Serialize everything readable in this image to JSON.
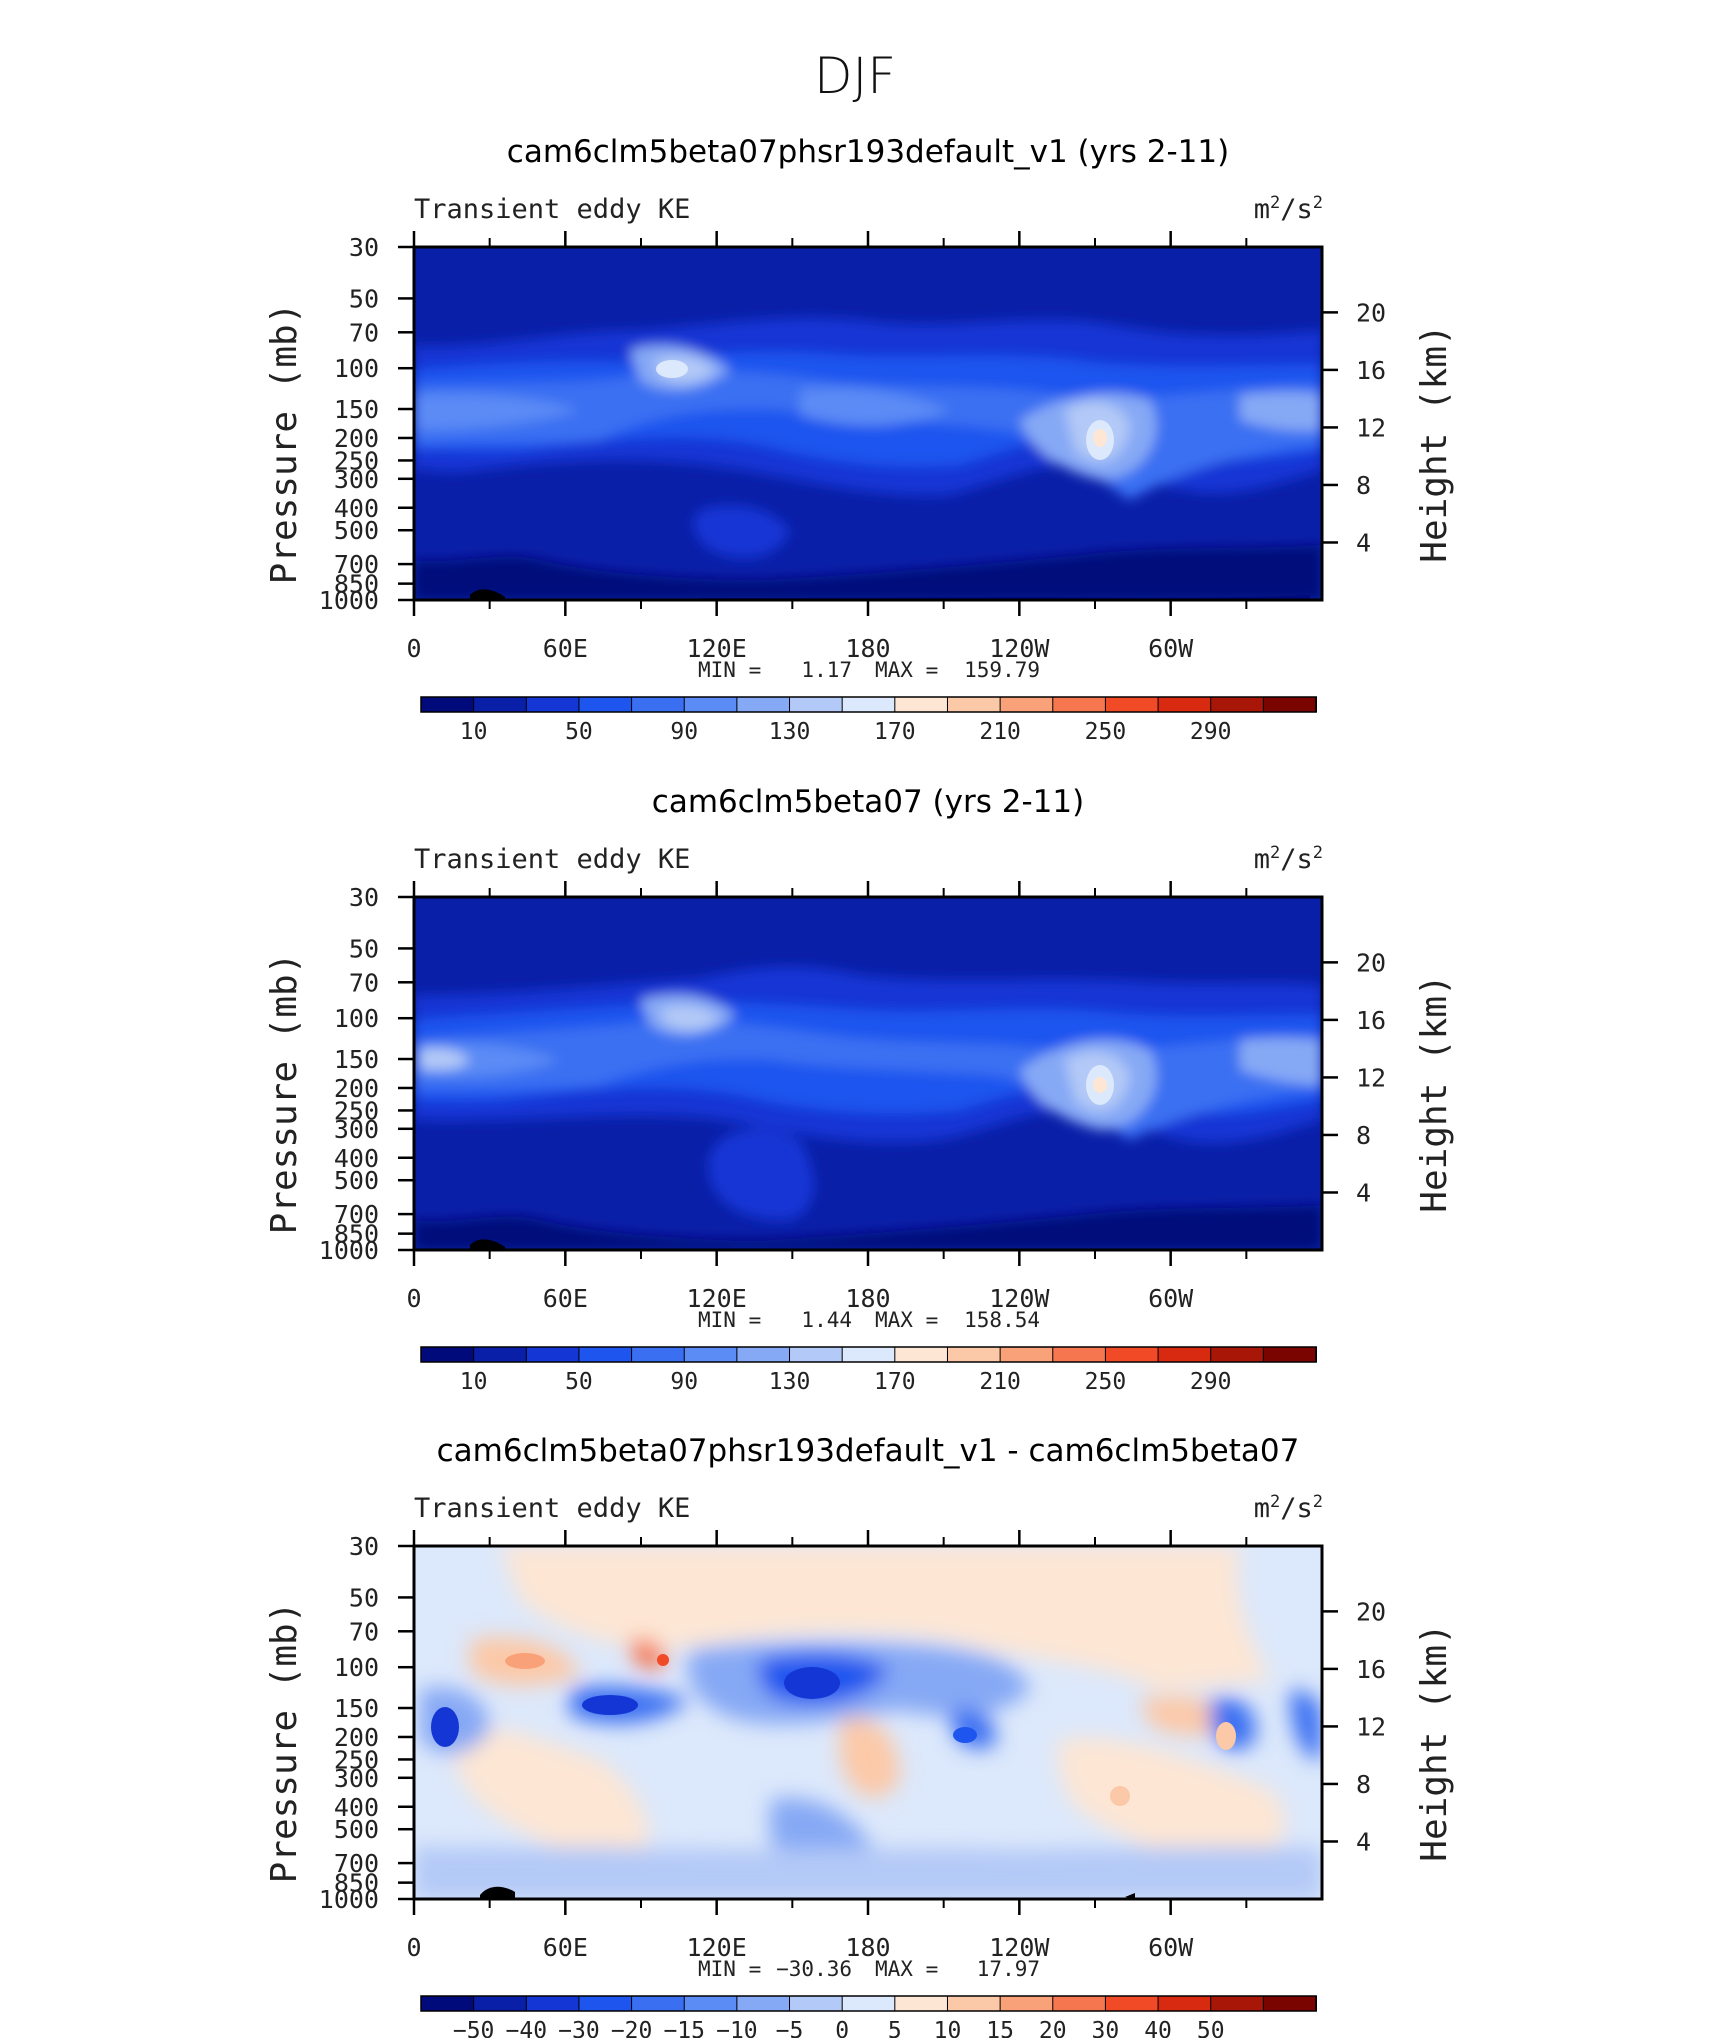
{
  "figure_title": "DJF",
  "units_label_base": "m",
  "units_label_sup": "2",
  "units_label_mid": "/s",
  "units_label_sup2": "2",
  "chart_data": [
    {
      "type": "heatmap",
      "title": "cam6clm5beta07phsr193default_v1 (yrs 2-11)",
      "subtitle_left": "Transient eddy KE",
      "units": "m²/s²",
      "ylabel_left": "Pressure (mb)",
      "ylabel_right": "Height (km)",
      "x_ticks": [
        "0",
        "60E",
        "120E",
        "180",
        "120W",
        "60W"
      ],
      "y_ticks_left": [
        "30",
        "50",
        "70",
        "100",
        "150",
        "200",
        "250",
        "300",
        "400",
        "500",
        "700",
        "850",
        "1000"
      ],
      "y_ticks_right": [
        "20",
        "16",
        "12",
        "8",
        "4"
      ],
      "stats": {
        "min_label": "MIN =",
        "min": "1.17",
        "max_label": "MAX =",
        "max": "159.79"
      },
      "colorbar": {
        "labels": [
          "10",
          "50",
          "90",
          "130",
          "170",
          "210",
          "250",
          "290"
        ],
        "colors": [
          "#000a7a",
          "#0a1fa8",
          "#1436d4",
          "#1e55ef",
          "#3a6ff2",
          "#5b8bf5",
          "#86a9f5",
          "#b3c9f7",
          "#dce8fb",
          "#fde6d4",
          "#fcc9a8",
          "#f9a27a",
          "#f6764f",
          "#f04a26",
          "#d82a10",
          "#a81608",
          "#7a0400"
        ]
      },
      "max_feature": {
        "x_deg": 290,
        "p_mb": 200,
        "value": 159.79
      }
    },
    {
      "type": "heatmap",
      "title": "cam6clm5beta07 (yrs 2-11)",
      "subtitle_left": "Transient eddy KE",
      "units": "m²/s²",
      "ylabel_left": "Pressure (mb)",
      "ylabel_right": "Height (km)",
      "x_ticks": [
        "0",
        "60E",
        "120E",
        "180",
        "120W",
        "60W"
      ],
      "y_ticks_left": [
        "30",
        "50",
        "70",
        "100",
        "150",
        "200",
        "250",
        "300",
        "400",
        "500",
        "700",
        "850",
        "1000"
      ],
      "y_ticks_right": [
        "20",
        "16",
        "12",
        "8",
        "4"
      ],
      "stats": {
        "min_label": "MIN =",
        "min": "1.44",
        "max_label": "MAX =",
        "max": "158.54"
      },
      "colorbar": {
        "labels": [
          "10",
          "50",
          "90",
          "130",
          "170",
          "210",
          "250",
          "290"
        ],
        "colors": [
          "#000a7a",
          "#0a1fa8",
          "#1436d4",
          "#1e55ef",
          "#3a6ff2",
          "#5b8bf5",
          "#86a9f5",
          "#b3c9f7",
          "#dce8fb",
          "#fde6d4",
          "#fcc9a8",
          "#f9a27a",
          "#f6764f",
          "#f04a26",
          "#d82a10",
          "#a81608",
          "#7a0400"
        ]
      },
      "max_feature": {
        "x_deg": 290,
        "p_mb": 200,
        "value": 158.54
      }
    },
    {
      "type": "heatmap",
      "title": "cam6clm5beta07phsr193default_v1 - cam6clm5beta07",
      "subtitle_left": "Transient eddy KE",
      "units": "m²/s²",
      "ylabel_left": "Pressure (mb)",
      "ylabel_right": "Height (km)",
      "x_ticks": [
        "0",
        "60E",
        "120E",
        "180",
        "120W",
        "60W"
      ],
      "y_ticks_left": [
        "30",
        "50",
        "70",
        "100",
        "150",
        "200",
        "250",
        "300",
        "400",
        "500",
        "700",
        "850",
        "1000"
      ],
      "y_ticks_right": [
        "20",
        "16",
        "12",
        "8",
        "4"
      ],
      "stats": {
        "min_label": "MIN =",
        "min": "−30.36",
        "max_label": "MAX =",
        "max": "17.97"
      },
      "colorbar": {
        "labels": [
          "−50",
          "−40",
          "−30",
          "−20",
          "−15",
          "−10",
          "−5",
          "0",
          "5",
          "10",
          "15",
          "20",
          "30",
          "40",
          "50"
        ],
        "colors": [
          "#000a7a",
          "#0a1fa8",
          "#1436d4",
          "#1e55ef",
          "#3a6ff2",
          "#5b8bf5",
          "#86a9f5",
          "#b3c9f7",
          "#dce8fb",
          "#fde6d4",
          "#fcc9a8",
          "#f9a27a",
          "#f6764f",
          "#f04a26",
          "#d82a10",
          "#a81608",
          "#7a0400"
        ]
      },
      "min_feature": {
        "x_deg": 160,
        "p_mb": 120,
        "value": -30.36
      },
      "max_feature": {
        "x_deg": 100,
        "p_mb": 100,
        "value": 17.97
      }
    }
  ]
}
